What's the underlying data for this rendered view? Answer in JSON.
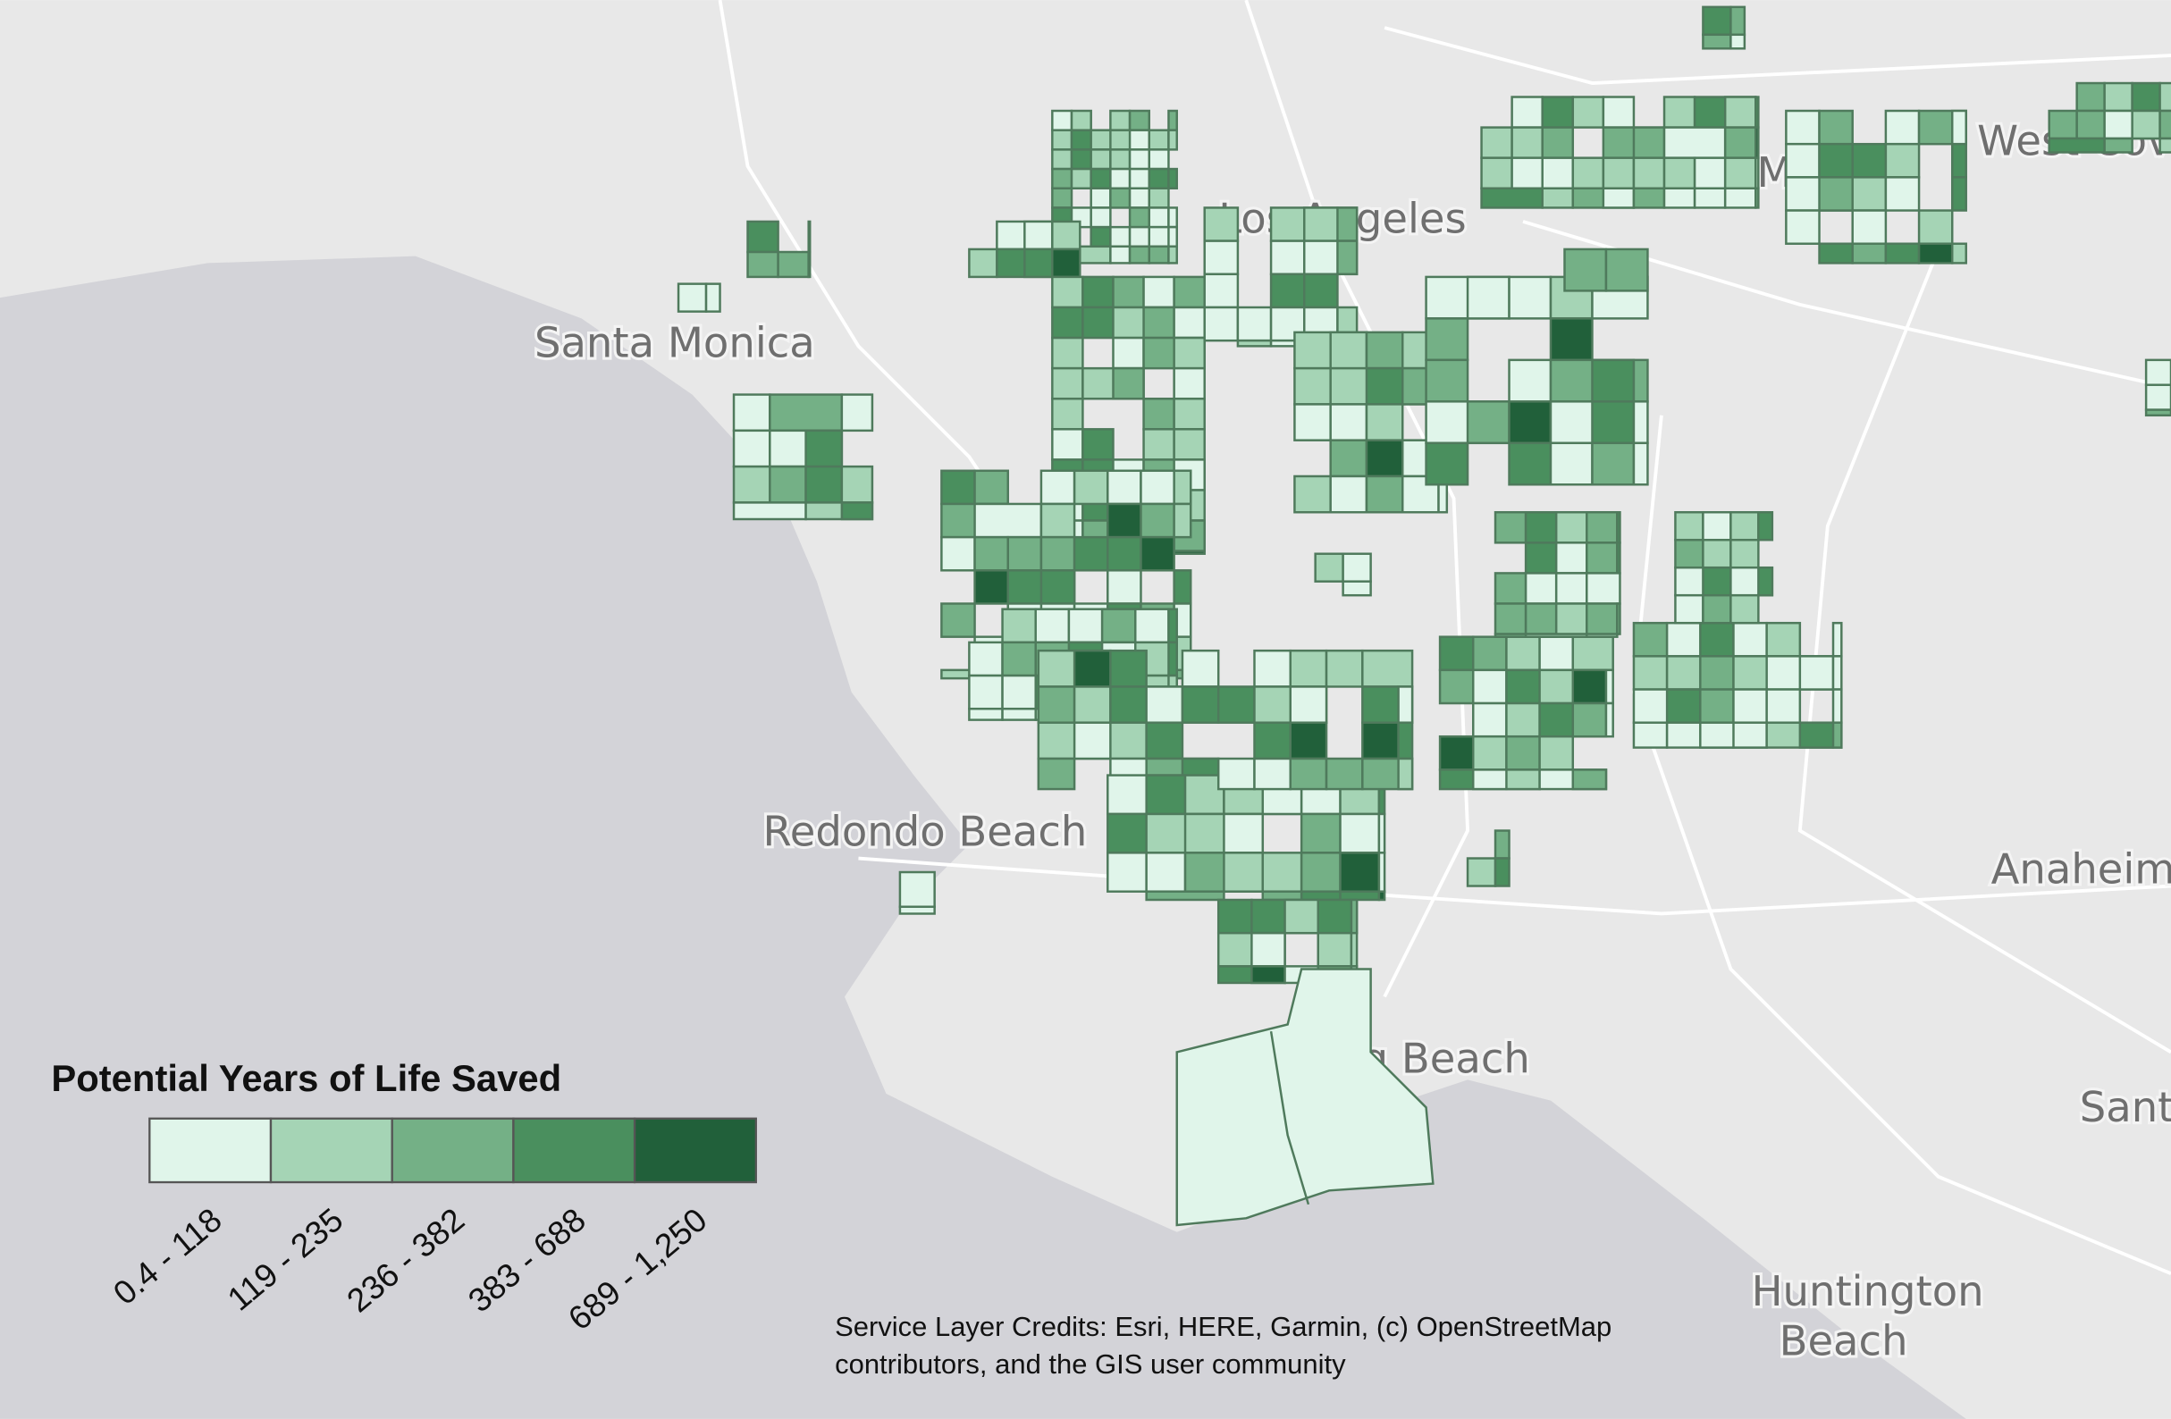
{
  "map": {
    "places": [
      {
        "name": "Santa Monica"
      },
      {
        "name": "Los Angeles"
      },
      {
        "name": "El Monte"
      },
      {
        "name": "West Covina"
      },
      {
        "name": "Redondo Beach"
      },
      {
        "name": "Long Beach"
      },
      {
        "name": "Anaheim"
      },
      {
        "name": "Santa Ana"
      },
      {
        "name": "Huntington Beach"
      }
    ],
    "legend": {
      "title": "Potential Years of Life Saved",
      "classes": [
        {
          "label": "0.4 - 118",
          "color": "#e0f5ea"
        },
        {
          "label": "119 - 235",
          "color": "#a5d4b5"
        },
        {
          "label": "236 - 382",
          "color": "#74b086"
        },
        {
          "label": "383 - 688",
          "color": "#4a8f5e"
        },
        {
          "label": "689 - 1,250",
          "color": "#21603a"
        }
      ]
    },
    "credits": [
      "Service Layer Credits: Esri, HERE, Garmin, (c) OpenStreetMap",
      "contributors, and the GIS user community"
    ]
  }
}
